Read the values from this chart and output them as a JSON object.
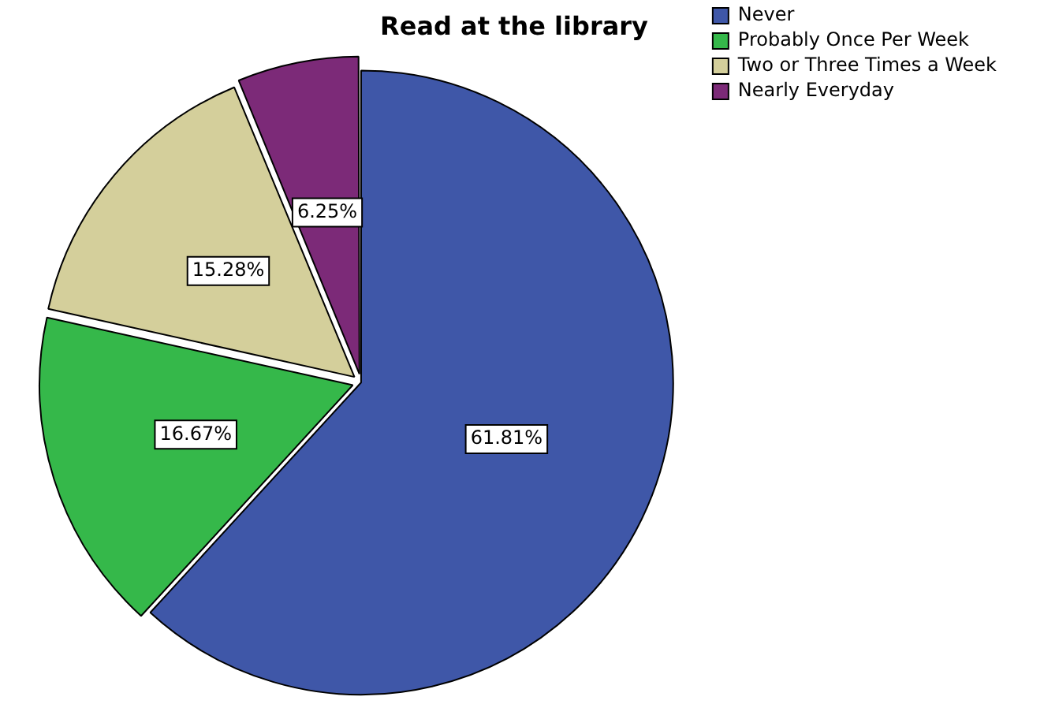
{
  "chart_data": {
    "type": "pie",
    "title": "Read at the library",
    "categories": [
      "Never",
      "Probably Once Per Week",
      "Two or Three Times a Week",
      "Nearly Everyday"
    ],
    "values": [
      61.81,
      16.67,
      15.28,
      6.25
    ],
    "colors": [
      "#3f57a8",
      "#35b84a",
      "#d4cf9b",
      "#7c2a78"
    ],
    "value_labels": [
      "61.81%",
      "16.67%",
      "15.28%",
      "6.25%"
    ],
    "legend": "top right"
  }
}
